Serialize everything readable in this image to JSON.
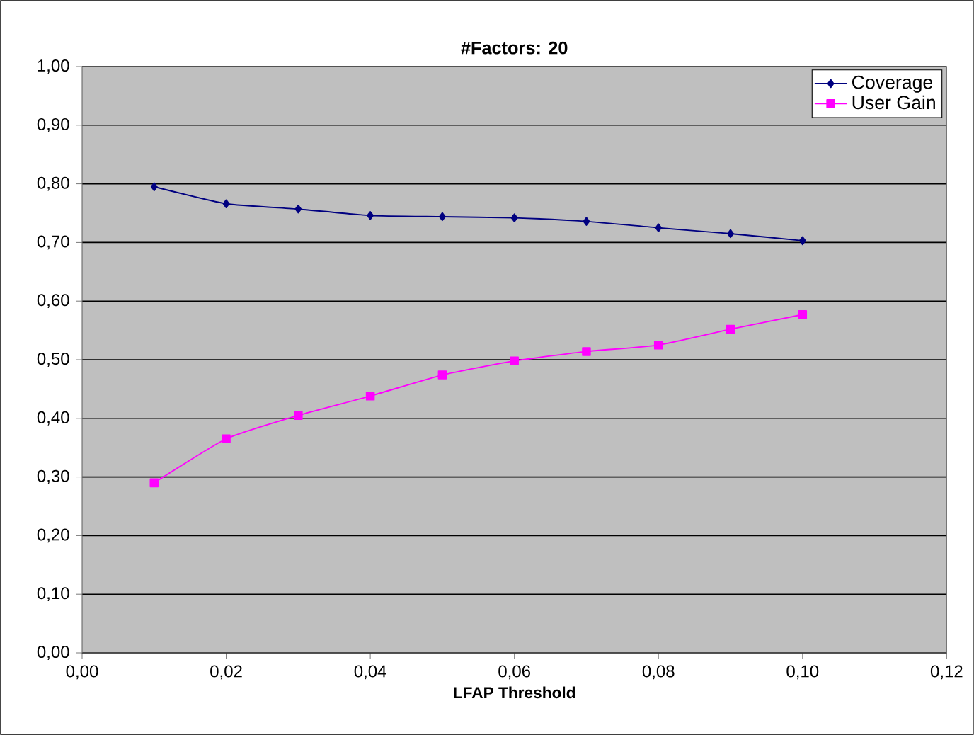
{
  "chart_data": {
    "type": "line",
    "title": "#Factors: 20",
    "xlabel": "LFAP Threshold",
    "x": [
      0.01,
      0.02,
      0.03,
      0.04,
      0.05,
      0.06,
      0.07,
      0.08,
      0.09,
      0.1
    ],
    "series": [
      {
        "name": "Coverage",
        "color": "#000080",
        "marker": "diamond",
        "values": [
          0.795,
          0.766,
          0.757,
          0.746,
          0.744,
          0.742,
          0.736,
          0.725,
          0.715,
          0.703
        ]
      },
      {
        "name": "User Gain",
        "color": "#ff00ff",
        "marker": "square",
        "values": [
          0.29,
          0.365,
          0.405,
          0.438,
          0.474,
          0.498,
          0.514,
          0.525,
          0.552,
          0.577
        ]
      }
    ],
    "xlim": [
      0,
      0.12
    ],
    "xticks": [
      {
        "value": 0,
        "label": "0,00"
      },
      {
        "value": 0.02,
        "label": "0,02"
      },
      {
        "value": 0.04,
        "label": "0,04"
      },
      {
        "value": 0.06,
        "label": "0,06"
      },
      {
        "value": 0.08,
        "label": "0,08"
      },
      {
        "value": 0.1,
        "label": "0,10"
      },
      {
        "value": 0.12,
        "label": "0,12"
      }
    ],
    "ylim": [
      0,
      1
    ],
    "yticks": [
      {
        "value": 0,
        "label": "0,00"
      },
      {
        "value": 0.1,
        "label": "0,10"
      },
      {
        "value": 0.2,
        "label": "0,20"
      },
      {
        "value": 0.3,
        "label": "0,30"
      },
      {
        "value": 0.4,
        "label": "0,40"
      },
      {
        "value": 0.5,
        "label": "0,50"
      },
      {
        "value": 0.6,
        "label": "0,60"
      },
      {
        "value": 0.7,
        "label": "0,70"
      },
      {
        "value": 0.8,
        "label": "0,80"
      },
      {
        "value": 0.9,
        "label": "0,90"
      },
      {
        "value": 1.0,
        "label": "1,00"
      }
    ],
    "grid": "y",
    "legend": "top right"
  }
}
